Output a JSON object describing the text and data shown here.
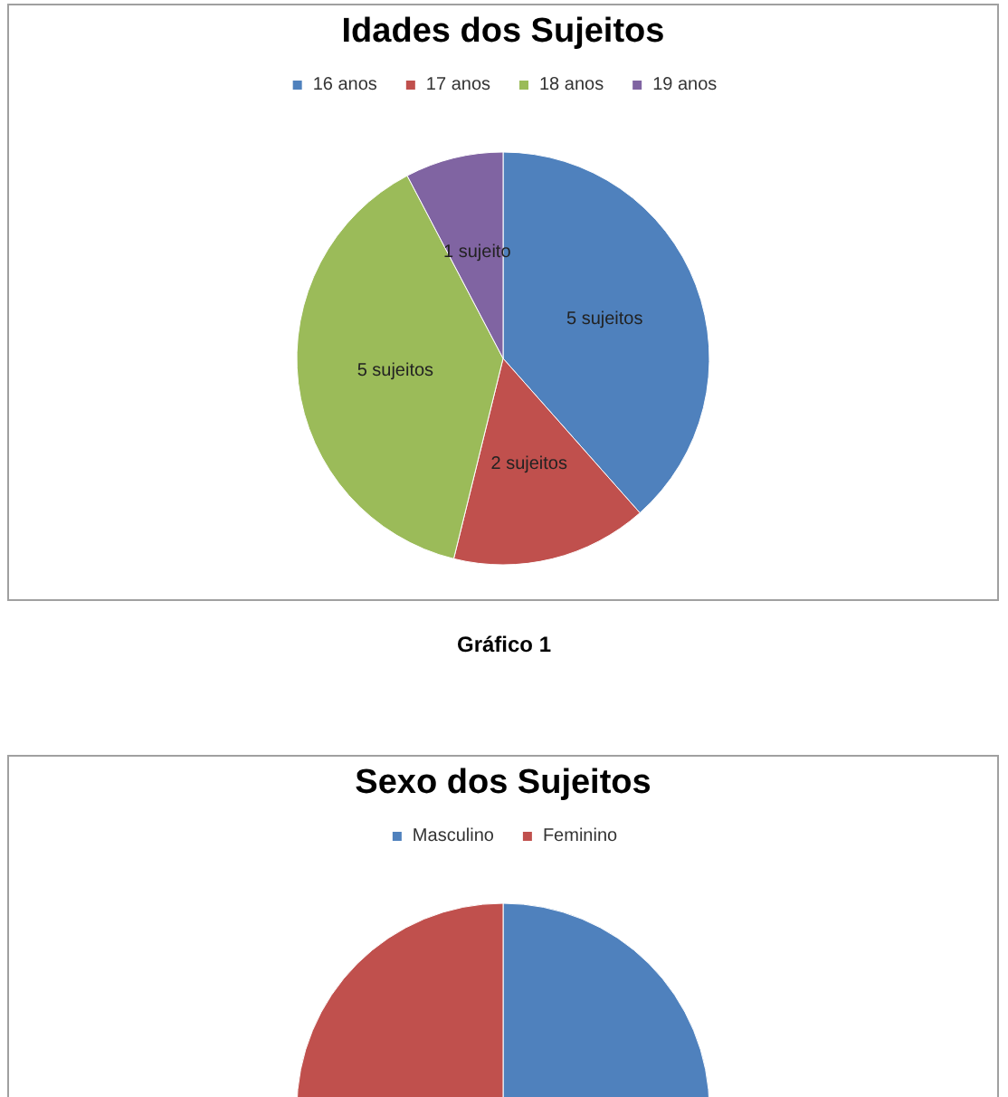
{
  "chart_data": [
    {
      "type": "pie",
      "title": "Idades dos Sujeitos",
      "categories": [
        "16 anos",
        "17 anos",
        "18 anos",
        "19 anos"
      ],
      "values": [
        5,
        2,
        5,
        1
      ],
      "colors": [
        "#4f81bd",
        "#c0504d",
        "#9bbb59",
        "#8064a2"
      ],
      "value_labels": [
        "5 sujeitos",
        "2 sujeitos",
        "5 sujeitos",
        "1 sujeito"
      ],
      "legend": "top",
      "annotations": [
        "Gráfico 1"
      ]
    },
    {
      "type": "pie",
      "title": "Sexo dos Sujeitos",
      "categories": [
        "Masculino",
        "Feminino"
      ],
      "values": [
        50,
        50
      ],
      "colors": [
        "#4f81bd",
        "#c0504d"
      ],
      "legend": "top"
    }
  ]
}
